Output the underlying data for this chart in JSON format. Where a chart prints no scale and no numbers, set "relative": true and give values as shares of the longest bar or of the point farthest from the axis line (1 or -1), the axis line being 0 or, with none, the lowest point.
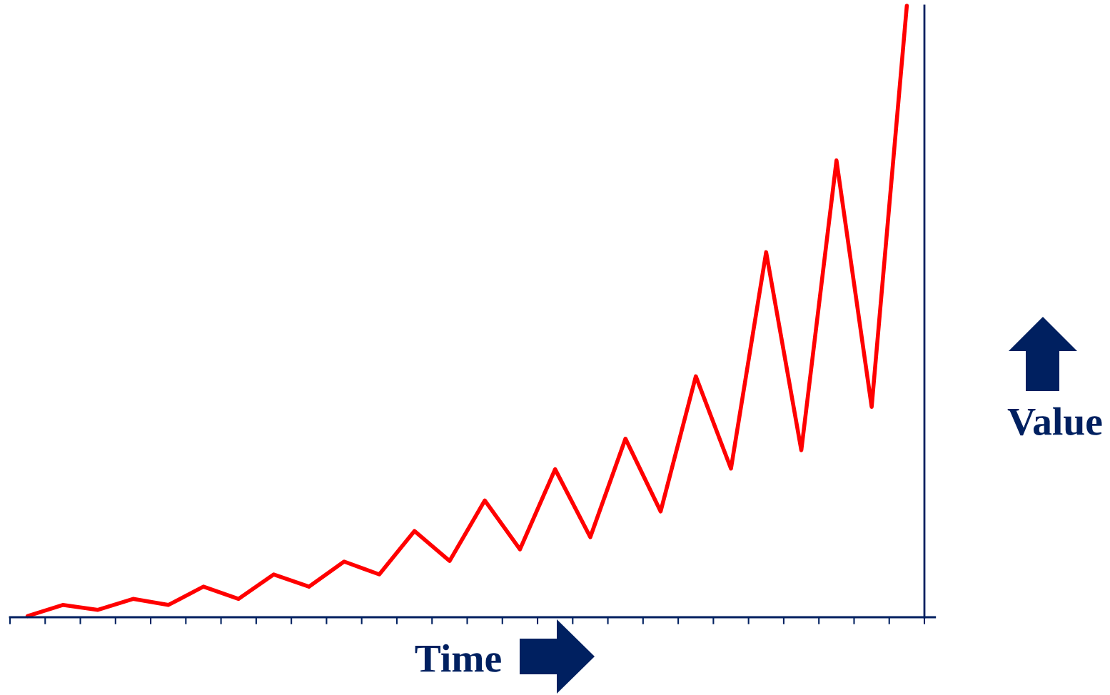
{
  "chart_data": {
    "type": "line",
    "relative": true,
    "xlabel": "Time",
    "ylabel": "Value",
    "line_style": "solid",
    "categories": [
      null,
      null,
      null,
      null,
      null,
      null,
      null,
      null,
      null,
      null,
      null,
      null,
      null,
      null,
      null,
      null,
      null,
      null,
      null,
      null,
      null,
      null,
      null,
      null,
      null,
      null
    ],
    "series": [
      {
        "color": "#ff0000",
        "values": [
          0.002,
          0.02,
          0.012,
          0.03,
          0.02,
          0.05,
          0.03,
          0.07,
          0.05,
          0.091,
          0.07,
          0.141,
          0.092,
          0.191,
          0.111,
          0.242,
          0.131,
          0.292,
          0.173,
          0.394,
          0.243,
          0.597,
          0.273,
          0.747,
          0.344,
          1
        ]
      }
    ]
  }
}
